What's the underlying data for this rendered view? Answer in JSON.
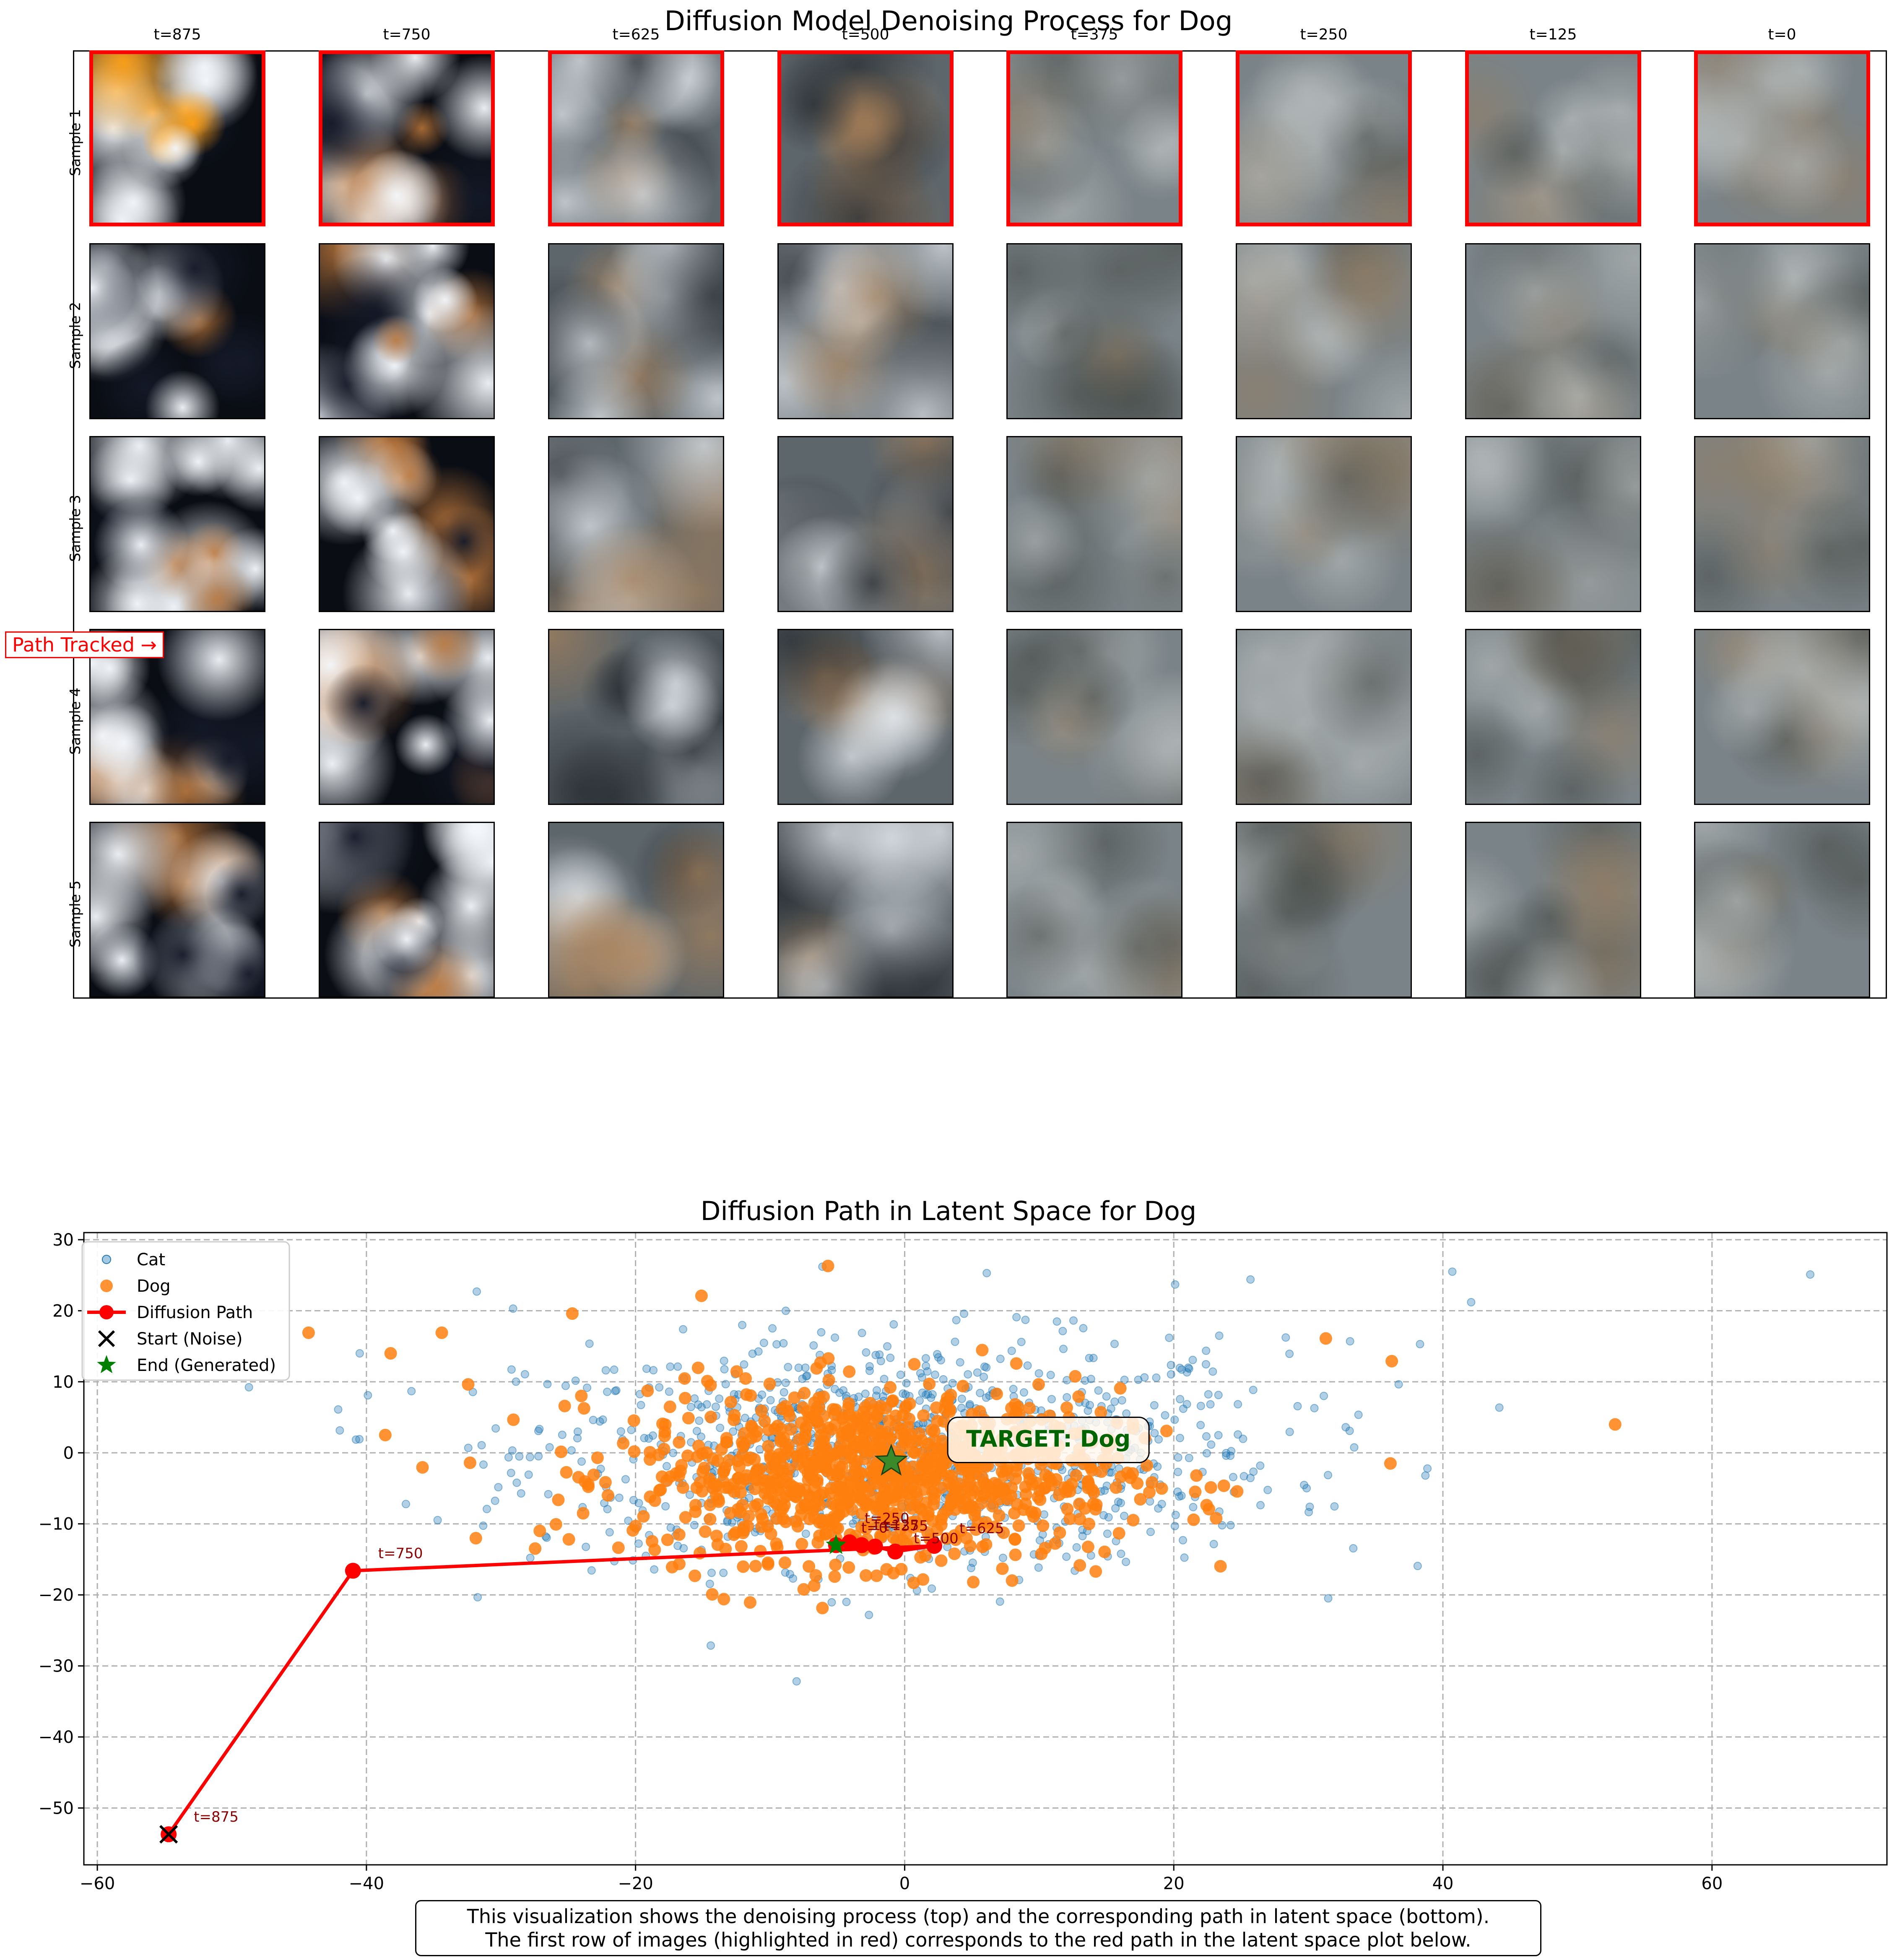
{
  "grid": {
    "title": "Diffusion Model Denoising Process for Dog",
    "columns": [
      "t=875",
      "t=750",
      "t=625",
      "t=500",
      "t=375",
      "t=250",
      "t=125",
      "t=0"
    ],
    "rows": [
      "Sample 1",
      "Sample 2",
      "Sample 3",
      "Sample 4",
      "Sample 5"
    ],
    "highlighted_row": "Sample 1",
    "highlight_color": "#ff0000",
    "path_label": "Path Tracked →"
  },
  "chart_data": {
    "type": "scatter",
    "title": "Diffusion Path in Latent Space for Dog",
    "xlabel": "",
    "ylabel": "",
    "xlim": [
      -61,
      73
    ],
    "ylim": [
      -58,
      31
    ],
    "xticks": [
      -60,
      -40,
      -20,
      0,
      20,
      40,
      60
    ],
    "yticks": [
      -50,
      -40,
      -30,
      -20,
      -10,
      0,
      10,
      20,
      30
    ],
    "grid": true,
    "legend_position": "top-left",
    "series": [
      {
        "name": "Cat",
        "color": "#1f77b4",
        "center": [
          0,
          0
        ],
        "spread": [
          14,
          8
        ],
        "outliers": [
          [
            67.3,
            25.1
          ],
          [
            40.7,
            25.5
          ],
          [
            42.1,
            21.2
          ],
          [
            -31.8,
            22.7
          ],
          [
            25.7,
            24.4
          ],
          [
            -42.1,
            6.1
          ],
          [
            -40.5,
            14.0
          ],
          [
            38.3,
            15.3
          ],
          [
            38.7,
            -3.2
          ],
          [
            6.1,
            25.3
          ],
          [
            20.1,
            23.7
          ],
          [
            -29.1,
            20.3
          ],
          [
            33.1,
            15.7
          ]
        ]
      },
      {
        "name": "Dog",
        "color": "#ff7f0e",
        "center": [
          -2,
          -3
        ],
        "spread": [
          9,
          6
        ],
        "outliers": [
          [
            52.8,
            4.0
          ],
          [
            36.2,
            12.9
          ],
          [
            36.1,
            -1.5
          ],
          [
            -44.3,
            16.9
          ],
          [
            -38.2,
            14.0
          ],
          [
            -38.6,
            2.5
          ],
          [
            -5.7,
            26.3
          ],
          [
            -34.4,
            16.9
          ],
          [
            5.1,
            -18.2
          ],
          [
            14.2,
            -16.7
          ],
          [
            -15.1,
            22.1
          ],
          [
            31.3,
            16.1
          ],
          [
            -24.7,
            19.6
          ],
          [
            -32.3,
            -1.4
          ]
        ]
      }
    ],
    "path": {
      "name": "Diffusion Path",
      "color": "#ff0000",
      "points": [
        {
          "t": "t=875",
          "x": -54.7,
          "y": -53.7
        },
        {
          "t": "t=750",
          "x": -41.0,
          "y": -16.6
        },
        {
          "t": "t=625",
          "x": 2.2,
          "y": -13.1
        },
        {
          "t": "t=500",
          "x": -0.7,
          "y": -13.9
        },
        {
          "t": "t=375",
          "x": -2.2,
          "y": -13.2
        },
        {
          "t": "t=250",
          "x": -4.1,
          "y": -12.6
        },
        {
          "t": "t=125",
          "x": -3.2,
          "y": -13.0
        },
        {
          "t": "t=0",
          "x": -5.1,
          "y": -13.0
        }
      ]
    },
    "start_marker": {
      "name": "Start (Noise)",
      "x": -54.7,
      "y": -53.7,
      "color": "#000000"
    },
    "end_marker": {
      "name": "End (Generated)",
      "x": -5.1,
      "y": -13.0,
      "color": "#008000"
    },
    "target": {
      "label": "TARGET: Dog",
      "x": -1.0,
      "y": -1.2,
      "color": "#006400"
    }
  },
  "caption": {
    "line1": "This visualization shows the denoising process (top) and the corresponding path in latent space (bottom).",
    "line2": "The first row of images (highlighted in red) corresponds to the red path in the latent space plot below."
  }
}
